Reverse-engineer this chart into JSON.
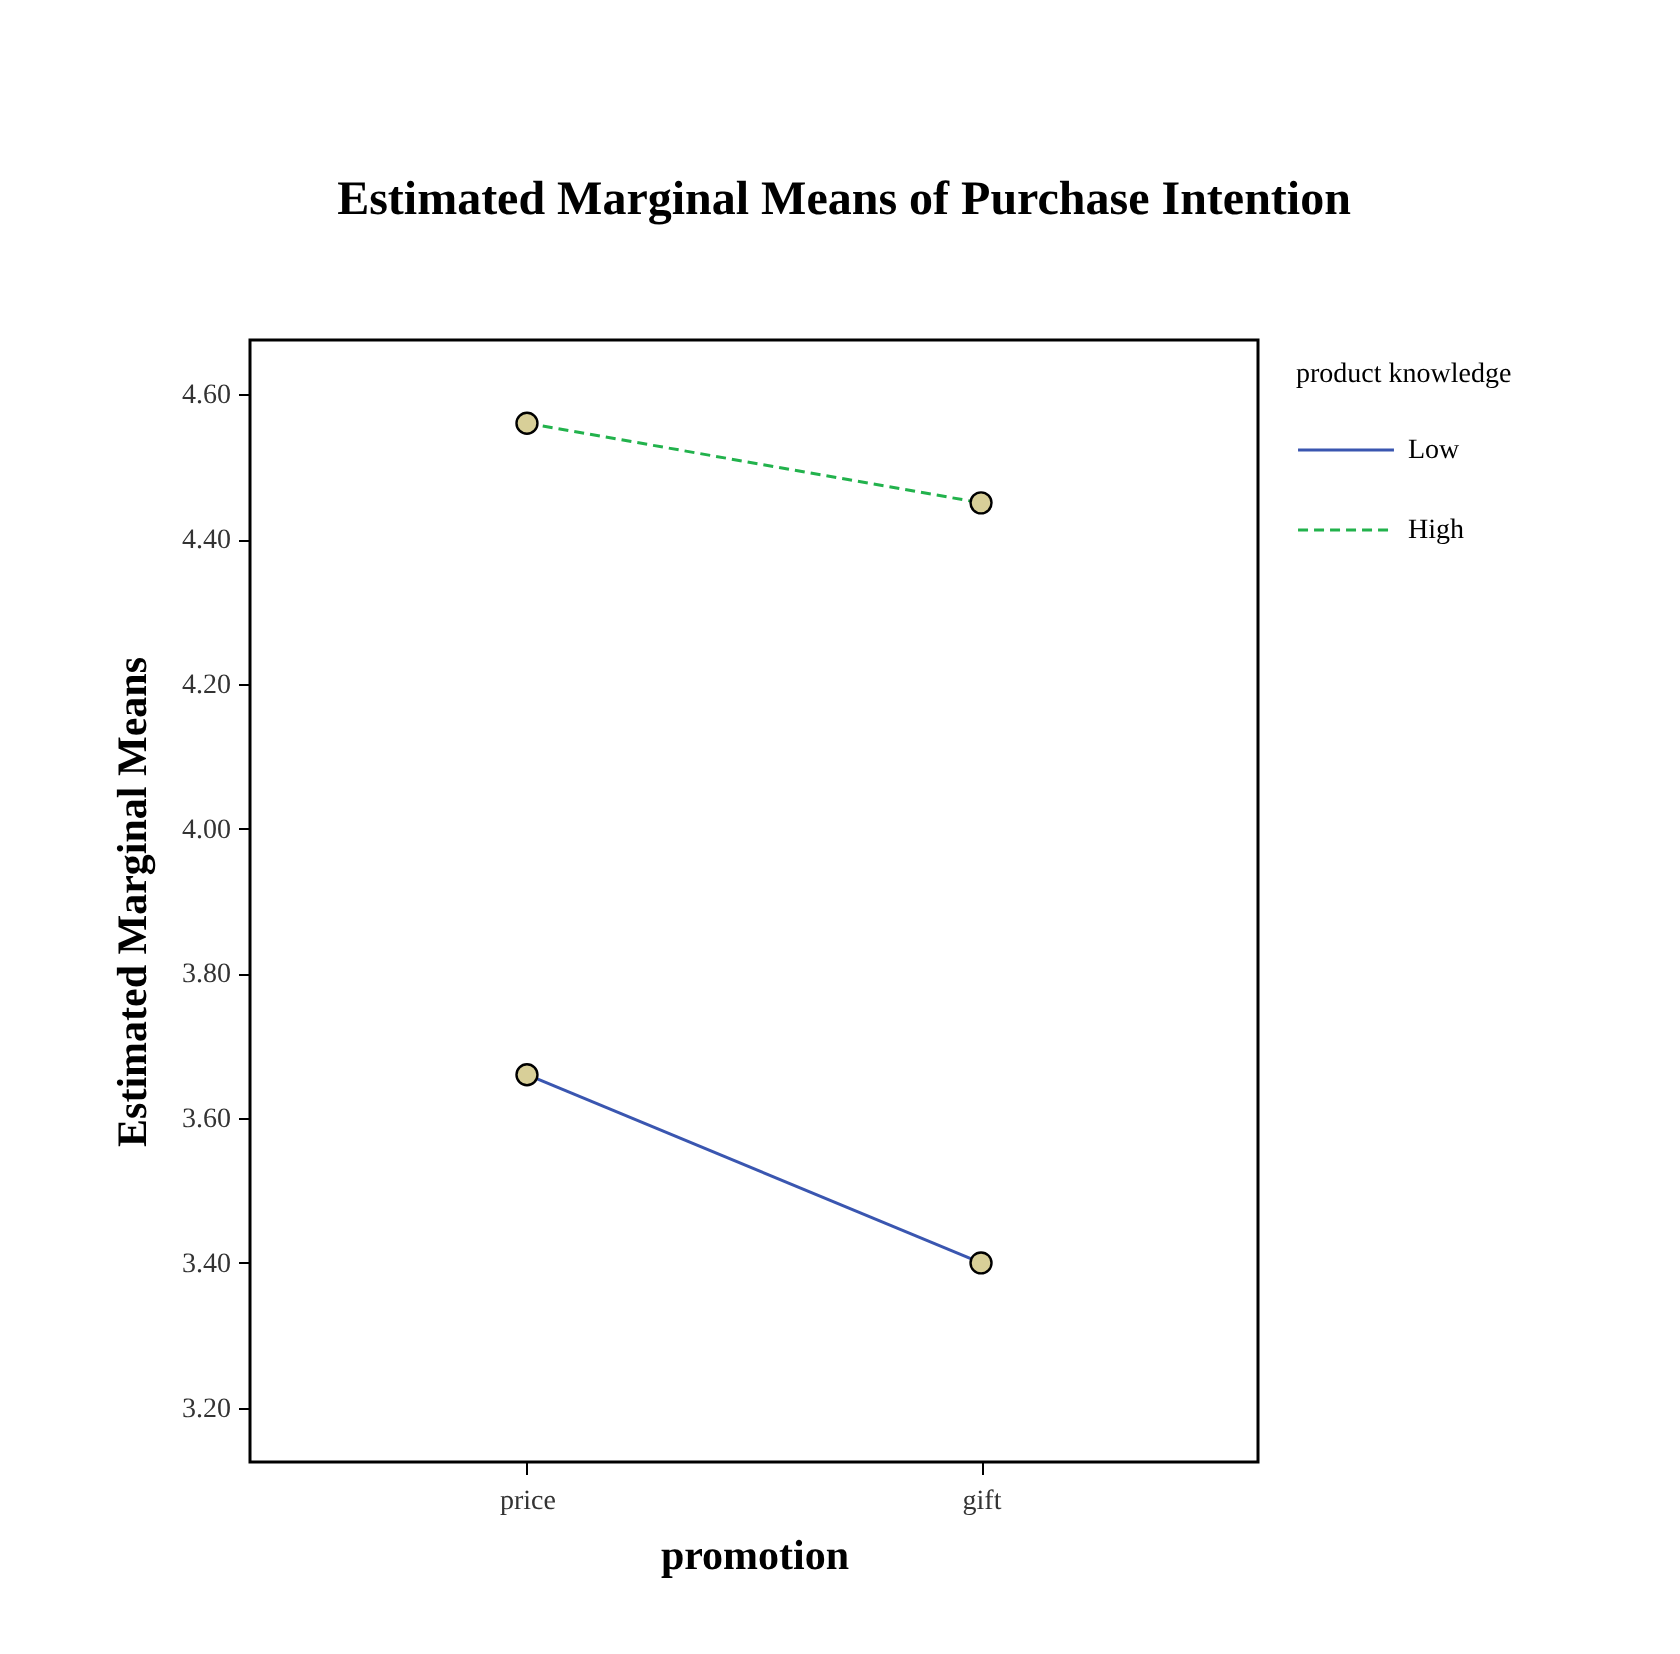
{
  "chart_data": {
    "type": "line",
    "title": "Estimated Marginal Means of Purchase Intention",
    "xlabel": "promotion",
    "ylabel": "Estimated Marginal Means",
    "legend_title": "product knowledge",
    "categories": [
      "price",
      "gift"
    ],
    "series": [
      {
        "name": "Low",
        "color": "#3a56b0",
        "line_style": "solid",
        "values": [
          3.66,
          3.4
        ]
      },
      {
        "name": "High",
        "color": "#22b24c",
        "line_style": "dashed",
        "values": [
          4.56,
          4.45
        ]
      }
    ],
    "ylim": [
      3.125,
      4.675
    ],
    "yticks": [
      {
        "value": 3.2,
        "label": "3.20"
      },
      {
        "value": 3.4,
        "label": "3.40"
      },
      {
        "value": 3.6,
        "label": "3.60"
      },
      {
        "value": 3.8,
        "label": "3.80"
      },
      {
        "value": 4.0,
        "label": "4.00"
      },
      {
        "value": 4.2,
        "label": "4.20"
      },
      {
        "value": 4.4,
        "label": "4.40"
      },
      {
        "value": 4.6,
        "label": "4.60"
      }
    ],
    "marker": "circle",
    "legend": "top right",
    "grid": false
  }
}
